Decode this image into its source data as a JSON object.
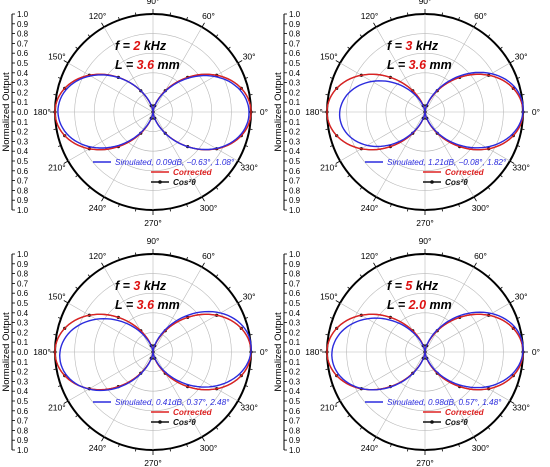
{
  "chart_data": [
    {
      "type": "polar-line",
      "annotation": {
        "f_prefix": "f = ",
        "f_value": "2",
        "f_unit": " kHz",
        "L_prefix": "L = ",
        "L_value": "3.6",
        "L_unit": " mm"
      },
      "ylabel": "Normalized Output",
      "radial_ticks": [
        "1.0",
        "0.9",
        "0.8",
        "0.7",
        "0.6",
        "0.5",
        "0.4",
        "0.3",
        "0.2",
        "0.1",
        "0.0",
        "0.1",
        "0.2",
        "0.3",
        "0.4",
        "0.5",
        "0.6",
        "0.7",
        "0.8",
        "0.9",
        "1.0"
      ],
      "rlim": [
        0,
        1.0
      ],
      "angle_ticks": [
        "0°",
        "30°",
        "60°",
        "90°",
        "120°",
        "150°",
        "180°",
        "210°",
        "240°",
        "270°",
        "300°",
        "330°"
      ],
      "grid": true,
      "legend_position": "bottom-right",
      "series": [
        {
          "name": "Simulated, 0.09dB, −0.63°, 1.08°",
          "color": "#2b2bdd",
          "marker": "none",
          "rotation_deg": -0.63,
          "peak": 0.98,
          "back_ratio": 0.99,
          "distortion": 0.0
        },
        {
          "name": "Corrected",
          "color": "#dd2222",
          "marker": "none",
          "rotation_deg": 0,
          "peak": 1.0,
          "back_ratio": 1.0,
          "distortion": 0.0
        },
        {
          "name": "Cos²θ",
          "color": "#111111",
          "marker": "dot",
          "rotation_deg": 0,
          "peak": 1.0,
          "back_ratio": 1.0,
          "distortion": 0.0
        }
      ]
    },
    {
      "type": "polar-line",
      "annotation": {
        "f_prefix": "f = ",
        "f_value": "3",
        "f_unit": " kHz",
        "L_prefix": "L = ",
        "L_value": "3.6",
        "L_unit": " mm"
      },
      "ylabel": "Normalized Output",
      "radial_ticks": [
        "1.0",
        "0.9",
        "0.8",
        "0.7",
        "0.6",
        "0.5",
        "0.4",
        "0.3",
        "0.2",
        "0.1",
        "0.0",
        "0.1",
        "0.2",
        "0.3",
        "0.4",
        "0.5",
        "0.6",
        "0.7",
        "0.8",
        "0.9",
        "1.0"
      ],
      "rlim": [
        0,
        1.0
      ],
      "angle_ticks": [
        "0°",
        "30°",
        "60°",
        "90°",
        "120°",
        "150°",
        "180°",
        "210°",
        "240°",
        "270°",
        "300°",
        "330°"
      ],
      "grid": true,
      "legend_position": "bottom-right",
      "series": [
        {
          "name": "Simulated, 1.21dB, −0.08°, 1.82°",
          "color": "#2b2bdd",
          "marker": "none",
          "rotation_deg": -0.08,
          "peak": 1.0,
          "back_ratio": 0.87,
          "distortion": 0.1
        },
        {
          "name": "Corrected",
          "color": "#dd2222",
          "marker": "none",
          "rotation_deg": 0,
          "peak": 1.0,
          "back_ratio": 1.0,
          "distortion": 0.0
        },
        {
          "name": "Cos²θ",
          "color": "#111111",
          "marker": "dot",
          "rotation_deg": 0,
          "peak": 1.0,
          "back_ratio": 1.0,
          "distortion": 0.0
        }
      ]
    },
    {
      "type": "polar-line",
      "annotation": {
        "f_prefix": "f = ",
        "f_value": "3",
        "f_unit": " kHz",
        "L_prefix": "L = ",
        "L_value": "3.6",
        "L_unit": " mm"
      },
      "ylabel": "Normalized Output",
      "radial_ticks": [
        "1.0",
        "0.9",
        "0.8",
        "0.7",
        "0.6",
        "0.5",
        "0.4",
        "0.3",
        "0.2",
        "0.1",
        "0.0",
        "0.1",
        "0.2",
        "0.3",
        "0.4",
        "0.5",
        "0.6",
        "0.7",
        "0.8",
        "0.9",
        "1.0"
      ],
      "rlim": [
        0,
        1.0
      ],
      "angle_ticks": [
        "0°",
        "30°",
        "60°",
        "90°",
        "120°",
        "150°",
        "180°",
        "210°",
        "240°",
        "270°",
        "300°",
        "330°"
      ],
      "grid": true,
      "legend_position": "bottom-right",
      "series": [
        {
          "name": "Simulated, 0.41dB, 0.37°, 2.48°",
          "color": "#2b2bdd",
          "marker": "none",
          "rotation_deg": 0.37,
          "peak": 1.0,
          "back_ratio": 0.95,
          "distortion": 0.12
        },
        {
          "name": "Corrected",
          "color": "#dd2222",
          "marker": "none",
          "rotation_deg": 0,
          "peak": 1.0,
          "back_ratio": 1.0,
          "distortion": 0.0
        },
        {
          "name": "Cos²θ",
          "color": "#111111",
          "marker": "dot",
          "rotation_deg": 0,
          "peak": 1.0,
          "back_ratio": 1.0,
          "distortion": 0.0
        }
      ]
    },
    {
      "type": "polar-line",
      "annotation": {
        "f_prefix": "f = ",
        "f_value": "5",
        "f_unit": " kHz",
        "L_prefix": "L = ",
        "L_value": "2.0",
        "L_unit": " mm"
      },
      "ylabel": "Normalized Output",
      "radial_ticks": [
        "1.0",
        "0.9",
        "0.8",
        "0.7",
        "0.6",
        "0.5",
        "0.4",
        "0.3",
        "0.2",
        "0.1",
        "0.0",
        "0.1",
        "0.2",
        "0.3",
        "0.4",
        "0.5",
        "0.6",
        "0.7",
        "0.8",
        "0.9",
        "1.0"
      ],
      "rlim": [
        0,
        1.0
      ],
      "angle_ticks": [
        "0°",
        "30°",
        "60°",
        "90°",
        "120°",
        "150°",
        "180°",
        "210°",
        "240°",
        "270°",
        "300°",
        "330°"
      ],
      "grid": true,
      "legend_position": "bottom-right",
      "series": [
        {
          "name": "Simulated, 0.98dB, 0.57°, 1.48°",
          "color": "#2b2bdd",
          "marker": "none",
          "rotation_deg": 0.57,
          "peak": 1.0,
          "back_ratio": 0.95,
          "distortion": 0.08
        },
        {
          "name": "Corrected",
          "color": "#dd2222",
          "marker": "none",
          "rotation_deg": 0,
          "peak": 1.0,
          "back_ratio": 1.0,
          "distortion": 0.0
        },
        {
          "name": "Cos²θ",
          "color": "#111111",
          "marker": "dot",
          "rotation_deg": 0,
          "peak": 1.0,
          "back_ratio": 1.0,
          "distortion": 0.0
        }
      ]
    }
  ],
  "colors": {
    "simulated": "#2b2bdd",
    "corrected": "#dd2222",
    "theory": "#111111",
    "annotation_value": "#dd1111",
    "grid": "#b8b8b8"
  }
}
